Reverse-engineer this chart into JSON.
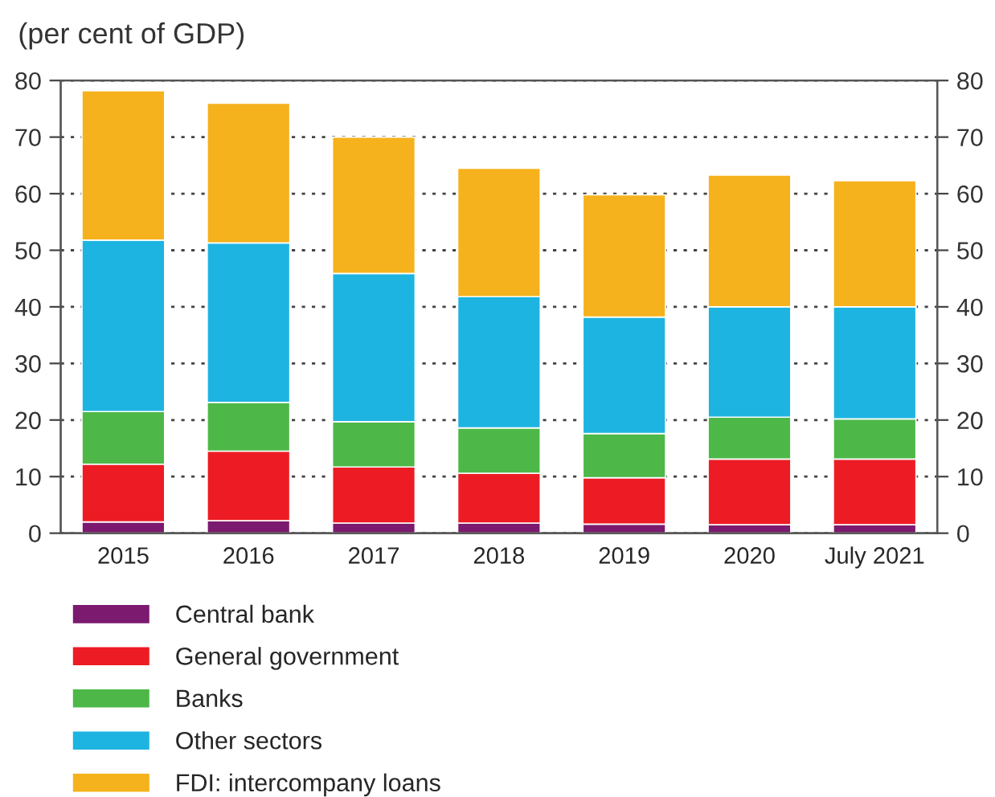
{
  "chart_data": {
    "type": "bar",
    "stacked": true,
    "ylabel": "(per cent of GDP)",
    "categories": [
      "2015",
      "2016",
      "2017",
      "2018",
      "2019",
      "2020",
      "July 2021"
    ],
    "series": [
      {
        "name": "Central bank",
        "color": "#7b1a6e",
        "values": [
          2.0,
          2.2,
          1.8,
          1.8,
          1.6,
          1.5,
          1.5
        ]
      },
      {
        "name": "General government",
        "color": "#ed1c24",
        "values": [
          10.2,
          12.3,
          9.9,
          8.8,
          8.2,
          11.6,
          11.6
        ]
      },
      {
        "name": "Banks",
        "color": "#4db848",
        "values": [
          9.3,
          8.6,
          8.0,
          8.0,
          7.8,
          7.4,
          7.1
        ]
      },
      {
        "name": "Other sectors",
        "color": "#1eb4e1",
        "values": [
          30.3,
          28.2,
          26.2,
          23.2,
          20.6,
          19.5,
          19.8
        ]
      },
      {
        "name": "FDI: intercompany loans",
        "color": "#f5b21c",
        "values": [
          26.4,
          24.7,
          24.1,
          22.7,
          21.6,
          23.3,
          22.3
        ]
      }
    ],
    "ylim": [
      0,
      80
    ],
    "yticks": [
      0,
      10,
      20,
      30,
      40,
      50,
      60,
      70,
      80
    ],
    "y2lim": [
      0,
      80
    ],
    "y2ticks": [
      0,
      10,
      20,
      30,
      40,
      50,
      60,
      70,
      80
    ],
    "grid": "y",
    "legend": "bottom"
  }
}
